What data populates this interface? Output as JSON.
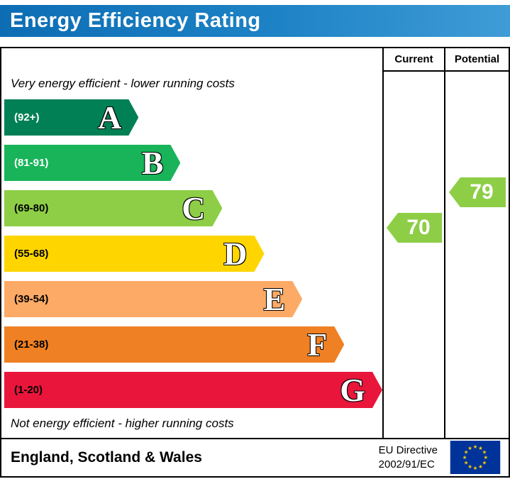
{
  "title": "Energy Efficiency Rating",
  "columns": {
    "current": "Current",
    "potential": "Potential"
  },
  "notes": {
    "top": "Very energy efficient - lower running costs",
    "bottom": "Not energy efficient - higher running costs"
  },
  "footer": {
    "region": "England, Scotland & Wales",
    "directive_line1": "EU Directive",
    "directive_line2": "2002/91/EC"
  },
  "colors": {
    "banner_blue": "#1e83c6",
    "border": "#000000",
    "eu_flag_blue": "#003399",
    "eu_flag_star": "#ffcc00"
  },
  "chart_data": {
    "type": "bar",
    "orientation": "horizontal",
    "title": "Energy Efficiency Rating",
    "bands": [
      {
        "letter": "A",
        "range": "(92+)",
        "color": "#008054",
        "range_text_color": "#ffffff",
        "width_pct": 36
      },
      {
        "letter": "B",
        "range": "(81-91)",
        "color": "#19b459",
        "range_text_color": "#ffffff",
        "width_pct": 47
      },
      {
        "letter": "C",
        "range": "(69-80)",
        "color": "#8dce46",
        "range_text_color": "#000000",
        "width_pct": 58
      },
      {
        "letter": "D",
        "range": "(55-68)",
        "color": "#ffd500",
        "range_text_color": "#000000",
        "width_pct": 69
      },
      {
        "letter": "E",
        "range": "(39-54)",
        "color": "#fcaa65",
        "range_text_color": "#000000",
        "width_pct": 79
      },
      {
        "letter": "F",
        "range": "(21-38)",
        "color": "#ef8023",
        "range_text_color": "#000000",
        "width_pct": 90
      },
      {
        "letter": "G",
        "range": "(1-20)",
        "color": "#e9153b",
        "range_text_color": "#000000",
        "width_pct": 100
      }
    ],
    "current": {
      "value": 70,
      "band": "C",
      "color": "#8dce46"
    },
    "potential": {
      "value": 79,
      "band": "C",
      "color": "#8dce46"
    }
  }
}
